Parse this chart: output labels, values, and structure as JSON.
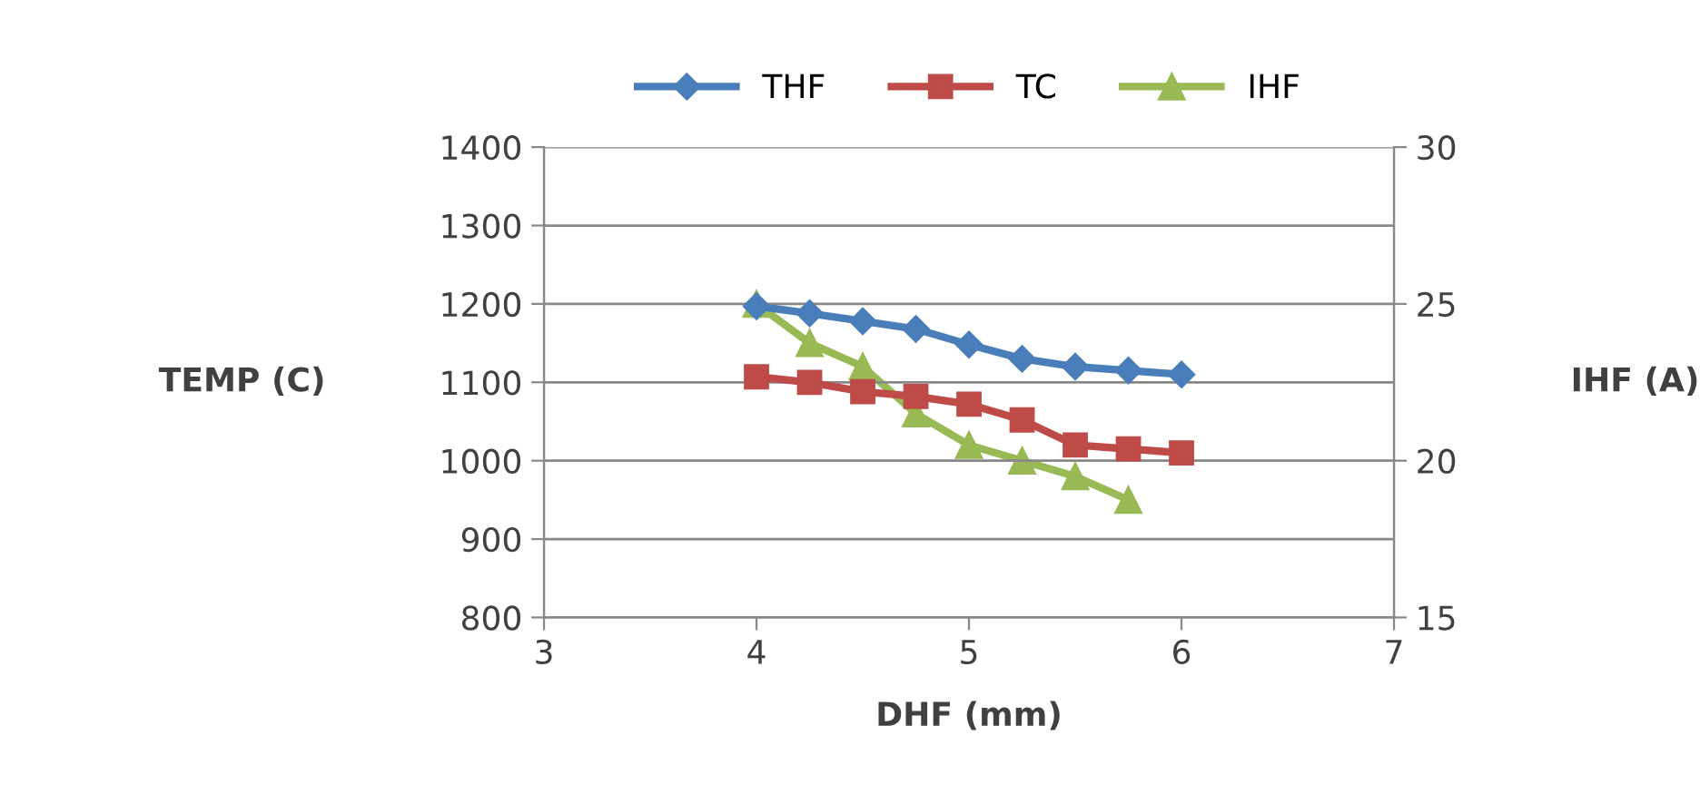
{
  "chart_data": {
    "type": "line",
    "xlabel": "DHF (mm)",
    "ylabel": "TEMP (C)",
    "y2label": "IHF (A)",
    "xlim": [
      3,
      7
    ],
    "xticks": [
      3,
      4,
      5,
      6,
      7
    ],
    "ylim": [
      800,
      1400
    ],
    "yticks": [
      800,
      900,
      1000,
      1100,
      1200,
      1300,
      1400
    ],
    "y2lim": [
      15,
      30
    ],
    "y2ticks": [
      15,
      20,
      25,
      30
    ],
    "grid": "y",
    "legend": "top",
    "series": [
      {
        "name": "THF",
        "color": "#4a7ebb",
        "marker": "diamond",
        "x": [
          4,
          4.25,
          4.5,
          4.75,
          5,
          5.25,
          5.5,
          5.75,
          6
        ],
        "values": [
          1197,
          1188,
          1178,
          1168,
          1148,
          1130,
          1120,
          1115,
          1110
        ]
      },
      {
        "name": "TC",
        "color": "#be4b48",
        "marker": "square",
        "x": [
          4,
          4.25,
          4.5,
          4.75,
          5,
          5.25,
          5.5,
          5.75,
          6
        ],
        "values": [
          1107,
          1100,
          1088,
          1082,
          1072,
          1052,
          1020,
          1015,
          1010
        ]
      },
      {
        "name": "IHF",
        "color": "#98b954",
        "marker": "triangle",
        "axis": "y2",
        "x": [
          4,
          4.25,
          4.5,
          4.75,
          5,
          5.25,
          5.5,
          5.75
        ],
        "values": [
          25,
          23.75,
          23,
          21.5,
          20.5,
          20,
          19.5,
          18.75
        ]
      }
    ]
  }
}
